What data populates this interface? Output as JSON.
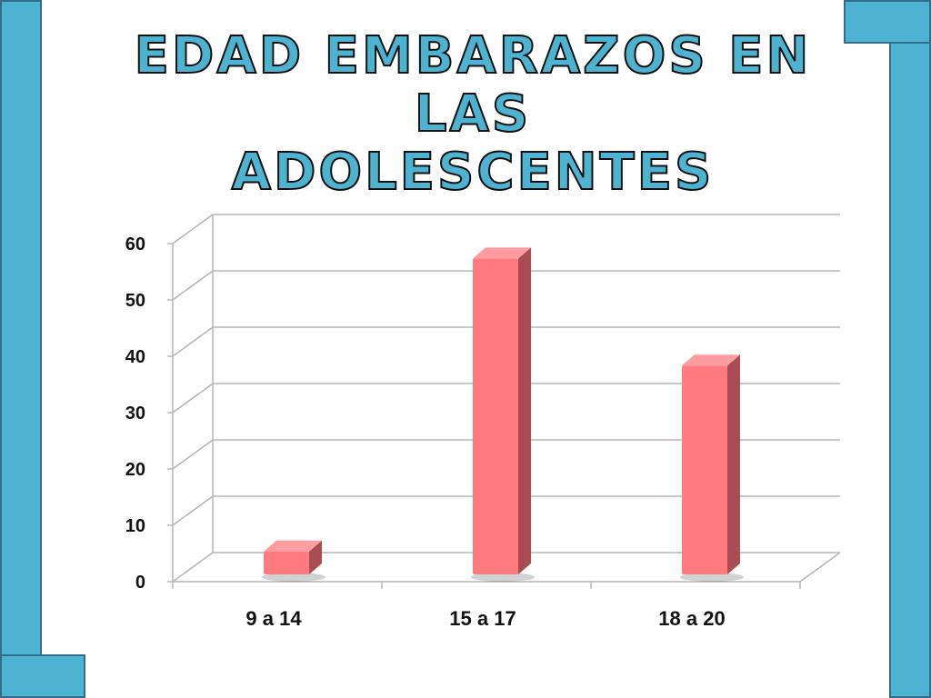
{
  "slide": {
    "title_lines": [
      "Edad embarazos en las",
      "adolescentes"
    ]
  },
  "colors": {
    "frame": "#4db3d1",
    "frame_border": "#2f6f8a",
    "bar_front": "#ff7b80",
    "bar_side": "#a94d52",
    "bar_top": "#ff9ca0",
    "grid": "#b5b5b5"
  },
  "chart_data": {
    "type": "bar",
    "categories": [
      "9 a 14",
      "15 a 17",
      "18 a 20"
    ],
    "values": [
      6,
      58,
      39
    ],
    "ylim": [
      0,
      60
    ],
    "yticks": [
      "0",
      "10",
      "20",
      "30",
      "40",
      "50",
      "60"
    ],
    "title": "Edad embarazos en las adolescentes",
    "xlabel": "",
    "ylabel": "",
    "grid": true,
    "legend": null,
    "style": "3d-column"
  }
}
